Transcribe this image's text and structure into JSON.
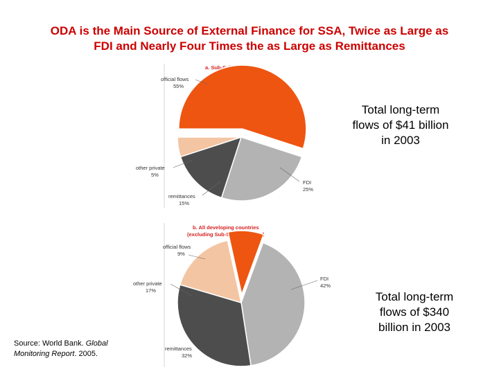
{
  "title": {
    "line1": "ODA is the Main Source of External Finance for SSA, Twice as Large as",
    "line2": "FDI and Nearly Four Times the as Large as Remittances"
  },
  "notes": {
    "ssa": [
      "Total long-term",
      "flows of $41 billion",
      "in 2003"
    ],
    "developing": [
      "Total long-term",
      "flows of $340",
      "billion in 2003"
    ]
  },
  "source": {
    "prefix": "Source: World Bank. ",
    "title_line1": "Global",
    "title_line2": "Monitoring Report",
    "suffix": ". 2005."
  },
  "colors": {
    "title": "#cc0000",
    "official_flows": "#ee5511",
    "other_private": "#f3c5a2",
    "remittances": "#4d4d4d",
    "fdi": "#b3b3b3"
  },
  "chart_data": [
    {
      "type": "pie",
      "title": "a. Sub-Saharan Africa",
      "slices": [
        {
          "label": "official flows",
          "value": 55,
          "value_label": "55%",
          "color": "#ee5511",
          "exploded": true
        },
        {
          "label": "FDI",
          "value": 25,
          "value_label": "25%",
          "color": "#b3b3b3",
          "exploded": false
        },
        {
          "label": "remittances",
          "value": 15,
          "value_label": "15%",
          "color": "#4d4d4d",
          "exploded": false
        },
        {
          "label": "other private",
          "value": 5,
          "value_label": "5%",
          "color": "#f3c5a2",
          "exploded": false
        }
      ]
    },
    {
      "type": "pie",
      "title": "b. All developing countries (excluding Sub-Saharan Africa)",
      "title_lines": [
        "b. All developing countries",
        "(excluding Sub-Saharan Africa)"
      ],
      "slices": [
        {
          "label": "FDI",
          "value": 42,
          "value_label": "42%",
          "color": "#b3b3b3",
          "exploded": false
        },
        {
          "label": "remittances",
          "value": 32,
          "value_label": "32%",
          "color": "#4d4d4d",
          "exploded": false
        },
        {
          "label": "other private",
          "value": 17,
          "value_label": "17%",
          "color": "#f3c5a2",
          "exploded": false
        },
        {
          "label": "official flows",
          "value": 9,
          "value_label": "9%",
          "color": "#ee5511",
          "exploded": true
        }
      ]
    }
  ]
}
